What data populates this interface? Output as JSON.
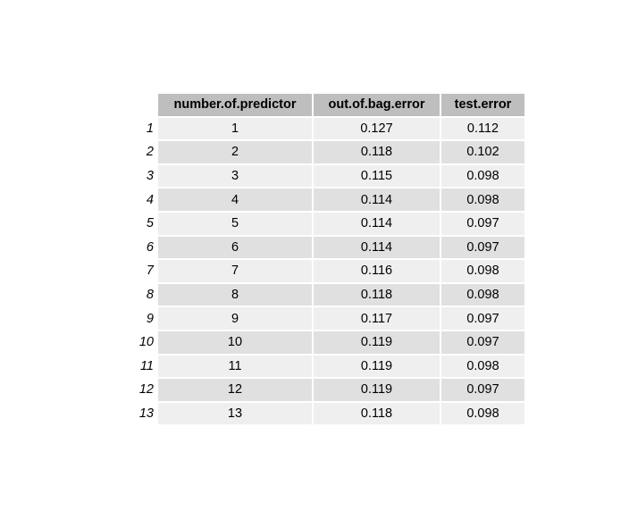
{
  "chart_data": {
    "type": "table",
    "columns": [
      "number.of.predictor",
      "out.of.bag.error",
      "test.error"
    ],
    "row_names": [
      "1",
      "2",
      "3",
      "4",
      "5",
      "6",
      "7",
      "8",
      "9",
      "10",
      "11",
      "12",
      "13"
    ],
    "rows": [
      [
        "1",
        "0.127",
        "0.112"
      ],
      [
        "2",
        "0.118",
        "0.102"
      ],
      [
        "3",
        "0.115",
        "0.098"
      ],
      [
        "4",
        "0.114",
        "0.098"
      ],
      [
        "5",
        "0.114",
        "0.097"
      ],
      [
        "6",
        "0.114",
        "0.097"
      ],
      [
        "7",
        "0.116",
        "0.098"
      ],
      [
        "8",
        "0.118",
        "0.098"
      ],
      [
        "9",
        "0.117",
        "0.097"
      ],
      [
        "10",
        "0.119",
        "0.097"
      ],
      [
        "11",
        "0.119",
        "0.098"
      ],
      [
        "12",
        "0.119",
        "0.097"
      ],
      [
        "13",
        "0.118",
        "0.098"
      ]
    ],
    "colors": {
      "header_bg": "#bebebe",
      "row_odd_bg": "#efefef",
      "row_even_bg": "#e0e0e0"
    }
  }
}
